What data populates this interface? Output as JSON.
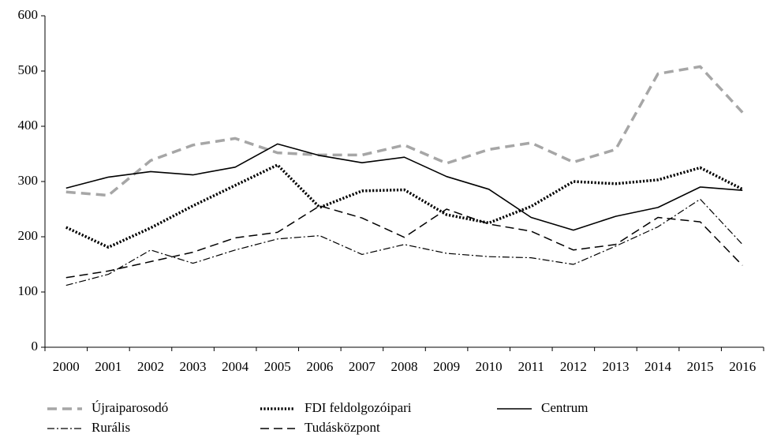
{
  "chart_data": {
    "type": "line",
    "categories": [
      "2000",
      "2001",
      "2002",
      "2003",
      "2004",
      "2005",
      "2006",
      "2007",
      "2008",
      "2009",
      "2010",
      "2011",
      "2012",
      "2013",
      "2014",
      "2015",
      "2016"
    ],
    "series": [
      {
        "name": "Újraiparosodó",
        "color": "#a6a6a6",
        "values": [
          281,
          275,
          338,
          366,
          378,
          352,
          348,
          348,
          366,
          333,
          358,
          370,
          335,
          358,
          495,
          508,
          425
        ]
      },
      {
        "name": "FDI feldolgozóipari",
        "color": "#000000",
        "values": [
          217,
          181,
          216,
          256,
          293,
          330,
          253,
          283,
          285,
          240,
          225,
          255,
          300,
          296,
          303,
          325,
          286
        ]
      },
      {
        "name": "Centrum",
        "color": "#000000",
        "values": [
          288,
          308,
          318,
          312,
          326,
          368,
          347,
          334,
          344,
          309,
          286,
          235,
          212,
          237,
          253,
          290,
          284
        ]
      },
      {
        "name": "Rurális",
        "color": "#000000",
        "values": [
          112,
          132,
          176,
          152,
          176,
          196,
          202,
          168,
          186,
          170,
          164,
          162,
          150,
          183,
          218,
          268,
          186
        ]
      },
      {
        "name": "Tudásközpont",
        "color": "#000000",
        "values": [
          126,
          138,
          155,
          172,
          198,
          208,
          256,
          234,
          199,
          250,
          223,
          210,
          176,
          186,
          235,
          227,
          148
        ]
      }
    ],
    "ylim": [
      0,
      600
    ],
    "yticks": [
      0,
      100,
      200,
      300,
      400,
      500,
      600
    ],
    "legend": "bottom",
    "grid": false
  }
}
